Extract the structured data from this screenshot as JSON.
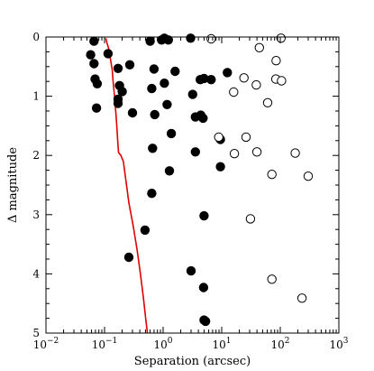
{
  "chart_data": {
    "type": "scatter",
    "title": "",
    "xlabel": "Separation (arcsec)",
    "ylabel": "Δ magnitude",
    "xscale": "log",
    "xlim": [
      0.01,
      1000
    ],
    "ylim": [
      5,
      0
    ],
    "x_ticks": [
      0.01,
      0.1,
      1,
      10,
      100,
      1000
    ],
    "x_tick_labels": [
      {
        "base": "10",
        "exp": "−2"
      },
      {
        "base": "10",
        "exp": "−1"
      },
      {
        "base": "10",
        "exp": "0"
      },
      {
        "base": "10",
        "exp": "1"
      },
      {
        "base": "10",
        "exp": "2"
      },
      {
        "base": "10",
        "exp": "3"
      }
    ],
    "y_ticks": [
      0,
      1,
      2,
      3,
      4,
      5
    ],
    "y_tick_labels": [
      "0",
      "1",
      "2",
      "3",
      "4",
      "5"
    ],
    "grid": false,
    "series": [
      {
        "marker": "filled-circle",
        "color": "#000000",
        "points": [
          [
            0.066,
            0.07
          ],
          [
            0.058,
            0.3
          ],
          [
            0.066,
            0.45
          ],
          [
            0.069,
            0.71
          ],
          [
            0.075,
            0.79
          ],
          [
            0.073,
            1.2
          ],
          [
            0.115,
            0.28
          ],
          [
            0.17,
            0.53
          ],
          [
            0.18,
            0.82
          ],
          [
            0.2,
            0.92
          ],
          [
            0.17,
            1.05
          ],
          [
            0.17,
            1.12
          ],
          [
            0.27,
            0.47
          ],
          [
            0.3,
            1.28
          ],
          [
            0.6,
            0.07
          ],
          [
            0.64,
            0.87
          ],
          [
            0.7,
            0.54
          ],
          [
            0.72,
            1.31
          ],
          [
            0.66,
            1.88
          ],
          [
            0.64,
            2.64
          ],
          [
            0.49,
            3.26
          ],
          [
            0.26,
            3.72
          ],
          [
            0.94,
            0.05
          ],
          [
            1.05,
            0.02
          ],
          [
            1.05,
            0.78
          ],
          [
            1.17,
            1.14
          ],
          [
            1.23,
            0.05
          ],
          [
            1.38,
            1.63
          ],
          [
            1.28,
            2.26
          ],
          [
            1.6,
            0.58
          ],
          [
            2.95,
            0.02
          ],
          [
            3.2,
            0.97
          ],
          [
            3.55,
            1.35
          ],
          [
            3.55,
            1.94
          ],
          [
            4.3,
            0.72
          ],
          [
            4.4,
            1.32
          ],
          [
            5.0,
            0.7
          ],
          [
            4.8,
            1.37
          ],
          [
            6.6,
            0.72
          ],
          [
            9.5,
            1.73
          ],
          [
            9.5,
            2.19
          ],
          [
            5.0,
            3.02
          ],
          [
            3.0,
            3.95
          ],
          [
            4.9,
            4.23
          ],
          [
            5.0,
            4.78
          ],
          [
            5.3,
            4.8
          ],
          [
            12.5,
            0.6
          ]
        ]
      },
      {
        "marker": "open-circle",
        "color": "#000000",
        "points": [
          [
            6.6,
            0.03
          ],
          [
            8.9,
            1.69
          ],
          [
            16.0,
            0.93
          ],
          [
            16.5,
            1.97
          ],
          [
            24.0,
            0.69
          ],
          [
            26.0,
            1.69
          ],
          [
            39.0,
            0.81
          ],
          [
            40.0,
            1.94
          ],
          [
            44.0,
            0.18
          ],
          [
            61.0,
            1.11
          ],
          [
            72.0,
            2.32
          ],
          [
            85.0,
            0.4
          ],
          [
            84.0,
            0.71
          ],
          [
            103.0,
            0.02
          ],
          [
            105.0,
            0.74
          ],
          [
            180.0,
            1.96
          ],
          [
            300.0,
            2.35
          ],
          [
            31.0,
            3.07
          ],
          [
            72.0,
            4.09
          ],
          [
            235.0,
            4.41
          ]
        ]
      },
      {
        "marker": "line",
        "color": "#e00000",
        "points": [
          [
            0.105,
            0.02
          ],
          [
            0.11,
            0.1
          ],
          [
            0.118,
            0.2
          ],
          [
            0.125,
            0.35
          ],
          [
            0.135,
            0.55
          ],
          [
            0.14,
            0.75
          ],
          [
            0.148,
            1.0
          ],
          [
            0.155,
            1.25
          ],
          [
            0.162,
            1.5
          ],
          [
            0.168,
            1.75
          ],
          [
            0.173,
            1.95
          ],
          [
            0.19,
            2.0
          ],
          [
            0.21,
            2.1
          ],
          [
            0.23,
            2.4
          ],
          [
            0.26,
            2.8
          ],
          [
            0.31,
            3.2
          ],
          [
            0.36,
            3.6
          ],
          [
            0.41,
            4.0
          ],
          [
            0.46,
            4.4
          ],
          [
            0.51,
            4.8
          ],
          [
            0.54,
            5.0
          ]
        ]
      }
    ]
  }
}
